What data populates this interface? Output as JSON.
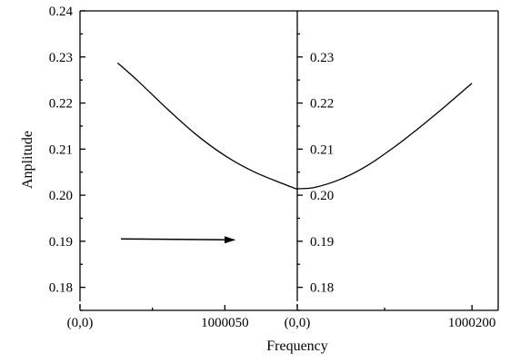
{
  "chart_data": {
    "type": "line",
    "xlabel": "Frequency",
    "ylabel": "Anplitude",
    "ylim": [
      0.175,
      0.24
    ],
    "grid": false,
    "y_ticks": [
      0.18,
      0.19,
      0.2,
      0.21,
      0.22,
      0.23,
      0.24
    ],
    "left_y_tick_labels": [
      "0.18",
      "0.19",
      "0.20",
      "0.21",
      "0.22",
      "0.23",
      "0.24"
    ],
    "right_y_tick_labels": [
      "0.18",
      "0.19",
      "0.20",
      "0.21",
      "0.22",
      "0.23"
    ],
    "x_tick_labels": [
      "(0,0)",
      "1000050",
      "(0,0)",
      "1000200"
    ],
    "panels": [
      {
        "name": "left",
        "x_domain": [
          1000000,
          1000075
        ],
        "x_ticks": [
          {
            "value": 1000000,
            "label_index": 0
          },
          {
            "value": 1000050,
            "label_index": 1
          }
        ],
        "x": [
          1000013,
          1000020,
          1000030,
          1000040,
          1000050,
          1000060,
          1000070,
          1000075
        ],
        "y": [
          0.2287,
          0.2248,
          0.2188,
          0.2132,
          0.2086,
          0.2051,
          0.2025,
          0.2013
        ]
      },
      {
        "name": "right",
        "x_domain": [
          1000000,
          1000230
        ],
        "x_ticks": [
          {
            "value": 1000000,
            "label_index": 2
          },
          {
            "value": 1000200,
            "label_index": 3
          }
        ],
        "x": [
          1000000,
          1000020,
          1000050,
          1000080,
          1000110,
          1000140,
          1000170,
          1000200
        ],
        "y": [
          0.2014,
          0.2017,
          0.2035,
          0.2064,
          0.2103,
          0.2147,
          0.2194,
          0.2243
        ]
      }
    ],
    "annotation": {
      "type": "arrow",
      "direction": "right",
      "y": 0.1905
    }
  }
}
